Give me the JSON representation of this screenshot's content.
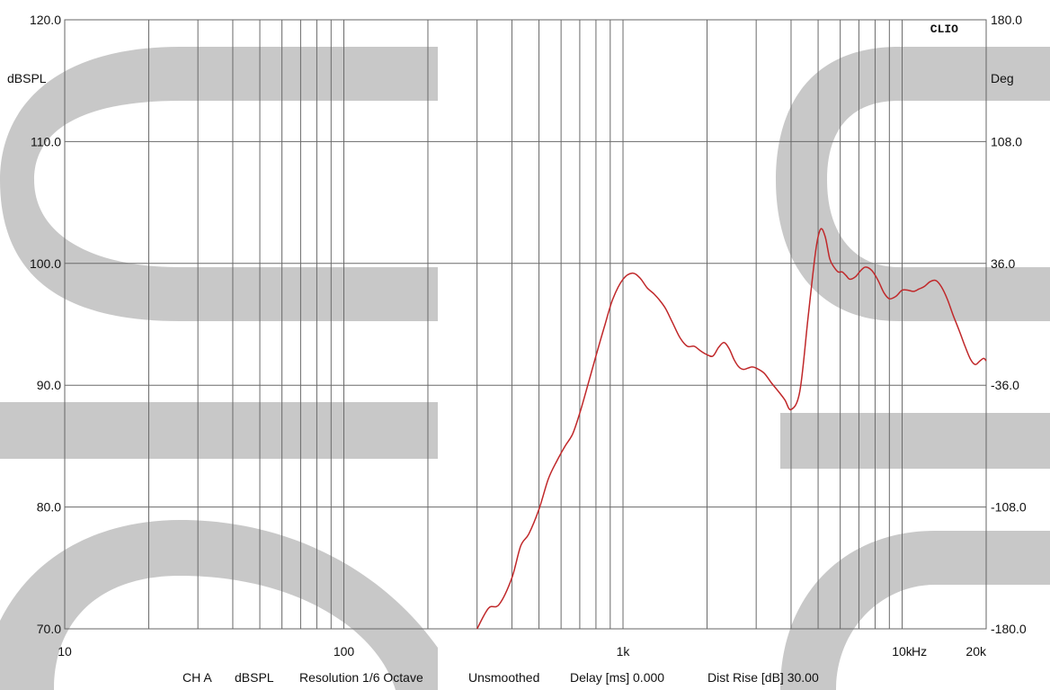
{
  "chart_data": {
    "type": "line",
    "brand": "CLIO",
    "ylabel": "dBSPL",
    "y2label": "Deg",
    "xunit": "Hz",
    "xscale": "log",
    "xlim": [
      10,
      20000
    ],
    "ylim": [
      70,
      120
    ],
    "y2lim": [
      -180,
      180
    ],
    "grid": true,
    "x_tick_labels": [
      {
        "x": 10,
        "label": "10"
      },
      {
        "x": 100,
        "label": "100"
      },
      {
        "x": 1000,
        "label": "1k"
      },
      {
        "x": 10000,
        "label": "10k"
      },
      {
        "x": 20000,
        "label": "20k"
      }
    ],
    "y_tick_labels": [
      "70.0",
      "80.0",
      "90.0",
      "100.0",
      "110.0",
      "120.0"
    ],
    "y2_tick_labels": [
      "-180.0",
      "-108.0",
      "-36.0",
      "36.0",
      "108.0",
      "180.0"
    ],
    "series": [
      {
        "color": "#c0282a",
        "x": [
          300,
          330,
          360,
          400,
          430,
          460,
          500,
          540,
          580,
          620,
          660,
          700,
          750,
          800,
          860,
          920,
          1000,
          1080,
          1150,
          1220,
          1290,
          1350,
          1420,
          1500,
          1600,
          1700,
          1800,
          1900,
          2000,
          2100,
          2200,
          2300,
          2400,
          2500,
          2600,
          2700,
          2800,
          2900,
          3000,
          3200,
          3400,
          3600,
          3800,
          4000,
          4300,
          4600,
          4900,
          5100,
          5300,
          5500,
          5700,
          5900,
          6100,
          6300,
          6500,
          6800,
          7100,
          7400,
          7800,
          8200,
          8600,
          9000,
          9500,
          10000,
          10500,
          11000,
          11500,
          12000,
          12600,
          13200,
          13800,
          14500,
          15200,
          16000,
          16800,
          17600,
          18300,
          19000,
          19600,
          20000
        ],
        "y": [
          70.0,
          71.7,
          72.0,
          74.2,
          76.8,
          77.8,
          79.8,
          82.3,
          83.8,
          85.0,
          86.0,
          87.7,
          90.1,
          92.4,
          94.9,
          97.1,
          98.7,
          99.2,
          98.8,
          98.0,
          97.5,
          97.0,
          96.3,
          95.2,
          93.9,
          93.2,
          93.2,
          92.8,
          92.5,
          92.4,
          93.1,
          93.5,
          93.0,
          92.1,
          91.5,
          91.3,
          91.4,
          91.5,
          91.4,
          91.0,
          90.2,
          89.5,
          88.8,
          88.0,
          89.5,
          95.5,
          101.0,
          102.8,
          102.2,
          100.4,
          99.7,
          99.3,
          99.3,
          99.0,
          98.7,
          98.9,
          99.4,
          99.7,
          99.4,
          98.6,
          97.6,
          97.1,
          97.3,
          97.8,
          97.8,
          97.7,
          97.9,
          98.1,
          98.5,
          98.6,
          98.1,
          97.1,
          95.8,
          94.5,
          93.2,
          92.1,
          91.7,
          92.0,
          92.2,
          92.0
        ]
      }
    ]
  },
  "footer": {
    "channel": "CH A",
    "unit": "dBSPL",
    "resolution": "Resolution 1/6 Octave",
    "smoothing": "Unsmoothed",
    "delay": "Delay [ms] 0.000",
    "dist_rise": "Dist Rise [dB] 30.00"
  }
}
